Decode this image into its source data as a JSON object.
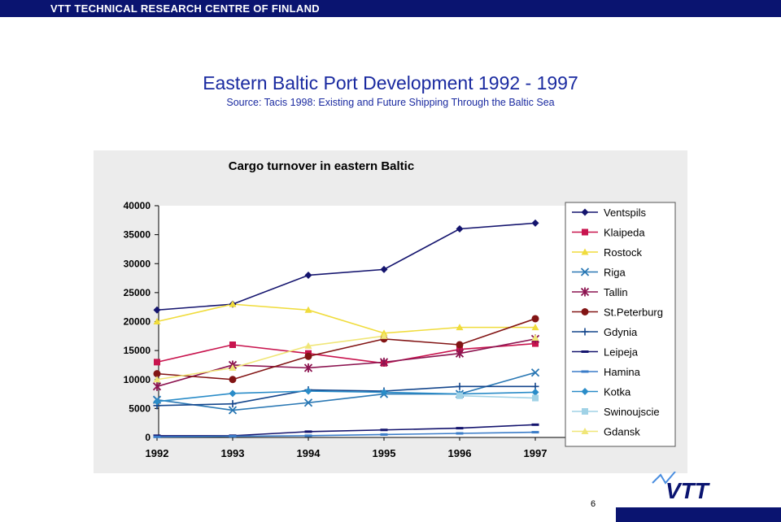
{
  "header": {
    "org": "VTT TECHNICAL RESEARCH CENTRE OF FINLAND"
  },
  "slide": {
    "title": "Eastern Baltic Port Development 1992 - 1997",
    "subtitle": "Source: Tacis 1998: Existing and Future Shipping Through the Baltic Sea",
    "page_number": "6"
  },
  "logo": {
    "text": "VTT"
  },
  "colors": {
    "brand": "#0a1470",
    "title": "#1a2aa0"
  },
  "chart_data": {
    "type": "line",
    "title": "Cargo turnover in eastern Baltic",
    "xlabel": "",
    "ylabel": "",
    "categories": [
      "1992",
      "1993",
      "1994",
      "1995",
      "1996",
      "1997"
    ],
    "ylim": [
      0,
      40000
    ],
    "yticks": [
      "0",
      "5000",
      "10000",
      "15000",
      "20000",
      "25000",
      "30000",
      "35000",
      "40000"
    ],
    "grid": false,
    "legend_position": "right",
    "series": [
      {
        "name": "Ventspils",
        "color": "#14146e",
        "marker": "diamond",
        "values": [
          22000,
          23000,
          28000,
          29000,
          36000,
          37000
        ]
      },
      {
        "name": "Klaipeda",
        "color": "#c8144e",
        "marker": "square",
        "values": [
          13000,
          16000,
          14500,
          12800,
          15200,
          16200
        ]
      },
      {
        "name": "Rostock",
        "color": "#f0dc3c",
        "marker": "triangle",
        "values": [
          20000,
          23000,
          22000,
          18000,
          19000,
          19000
        ]
      },
      {
        "name": "Riga",
        "color": "#2a78b4",
        "marker": "x",
        "values": [
          6500,
          4700,
          6000,
          7500,
          7500,
          11200
        ]
      },
      {
        "name": "Tallin",
        "color": "#8c1450",
        "marker": "star",
        "values": [
          8800,
          12500,
          12000,
          13000,
          14500,
          17000
        ]
      },
      {
        "name": "St.Peterburg",
        "color": "#821414",
        "marker": "circle",
        "values": [
          11000,
          10000,
          14000,
          17000,
          16000,
          20500
        ]
      },
      {
        "name": "Gdynia",
        "color": "#14468c",
        "marker": "plus",
        "values": [
          5500,
          5800,
          8200,
          8000,
          8800,
          8800
        ]
      },
      {
        "name": "Leipeja",
        "color": "#14146e",
        "marker": "dash",
        "values": [
          300,
          300,
          1000,
          1300,
          1600,
          2200
        ]
      },
      {
        "name": "Hamina",
        "color": "#3a7cc8",
        "marker": "dash",
        "values": [
          100,
          200,
          300,
          500,
          700,
          900
        ]
      },
      {
        "name": "Kotka",
        "color": "#2a8cc8",
        "marker": "diamond",
        "values": [
          6200,
          7600,
          8000,
          7800,
          7500,
          7800
        ]
      },
      {
        "name": "Swinoujscie",
        "color": "#a0d2e6",
        "marker": "square",
        "values": [
          null,
          null,
          null,
          null,
          7200,
          6800
        ]
      },
      {
        "name": "Gdansk",
        "color": "#f0e678",
        "marker": "triangle",
        "values": [
          10000,
          12000,
          15800,
          17500,
          null,
          17200
        ]
      }
    ]
  }
}
